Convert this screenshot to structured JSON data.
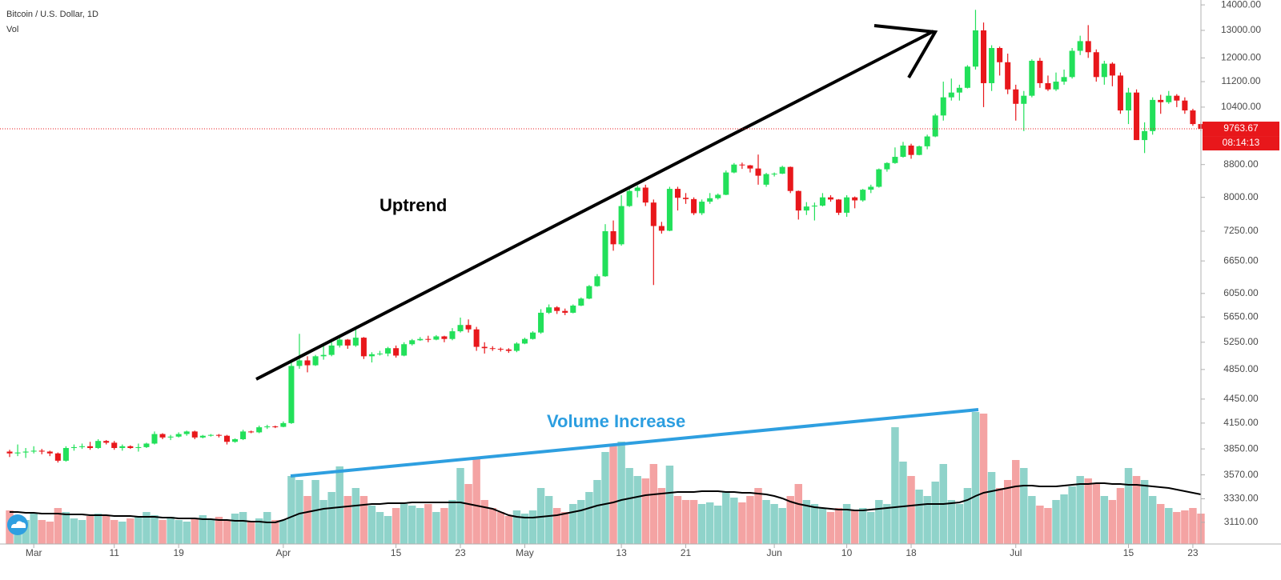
{
  "chart_data": {
    "type": "candlestick",
    "title": "Bitcoin / U.S. Dollar, 1D",
    "volume_label": "Vol",
    "annotations": [
      "Uptrend",
      "Volume Increase"
    ],
    "last_price": {
      "value": 9763.67,
      "label": "9763.67"
    },
    "countdown": "08:14:13",
    "log_scale": true,
    "grid": false,
    "up_color": "#22e05a",
    "down_color": "#e8171b",
    "volume_up_color": "#8fd3ca",
    "volume_down_color": "#f4a3a3",
    "ma_color": "#000000",
    "ylim": [
      2920,
      14200
    ],
    "yticks": [
      {
        "value": 3110,
        "label": "3110.00"
      },
      {
        "value": 3330,
        "label": "3330.00"
      },
      {
        "value": 3570,
        "label": "3570.00"
      },
      {
        "value": 3850,
        "label": "3850.00"
      },
      {
        "value": 4150,
        "label": "4150.00"
      },
      {
        "value": 4450,
        "label": "4450.00"
      },
      {
        "value": 4850,
        "label": "4850.00"
      },
      {
        "value": 5250,
        "label": "5250.00"
      },
      {
        "value": 5650,
        "label": "5650.00"
      },
      {
        "value": 6050,
        "label": "6050.00"
      },
      {
        "value": 6650,
        "label": "6650.00"
      },
      {
        "value": 7250,
        "label": "7250.00"
      },
      {
        "value": 8000,
        "label": "8000.00"
      },
      {
        "value": 8800,
        "label": "8800.00"
      },
      {
        "value": 10400,
        "label": "10400.00"
      },
      {
        "value": 11200,
        "label": "11200.00"
      },
      {
        "value": 12000,
        "label": "12000.00"
      },
      {
        "value": 13000,
        "label": "13000.00"
      },
      {
        "value": 14000,
        "label": "14000.00"
      }
    ],
    "y2lim": [
      0,
      680
    ],
    "categories": [
      null,
      null,
      null,
      "Mar",
      null,
      null,
      null,
      null,
      null,
      null,
      null,
      null,
      null,
      "11",
      null,
      null,
      null,
      null,
      null,
      null,
      null,
      "19",
      null,
      null,
      null,
      null,
      null,
      null,
      null,
      null,
      null,
      null,
      null,
      null,
      "Apr",
      null,
      null,
      null,
      null,
      null,
      null,
      null,
      null,
      null,
      null,
      null,
      null,
      null,
      "15",
      null,
      null,
      null,
      null,
      null,
      null,
      null,
      "23",
      null,
      null,
      null,
      null,
      null,
      null,
      null,
      "May",
      null,
      null,
      null,
      null,
      null,
      null,
      null,
      null,
      null,
      null,
      null,
      "13",
      null,
      null,
      null,
      null,
      null,
      null,
      null,
      "21",
      null,
      null,
      null,
      null,
      null,
      null,
      null,
      null,
      null,
      null,
      "Jun",
      null,
      null,
      null,
      null,
      null,
      null,
      null,
      null,
      "10",
      null,
      null,
      null,
      null,
      null,
      null,
      null,
      "18",
      null,
      null,
      null,
      null,
      null,
      null,
      null,
      null,
      null,
      null,
      null,
      null,
      "Jul",
      null,
      null,
      null,
      null,
      null,
      null,
      null,
      null,
      null,
      null,
      null,
      null,
      null,
      "15",
      null,
      null,
      null,
      null,
      null,
      null,
      null,
      "23",
      null
    ],
    "candles": [
      [
        3820,
        3840,
        3760,
        3800
      ],
      [
        3800,
        3900,
        3770,
        3810
      ],
      [
        3810,
        3860,
        3750,
        3820
      ],
      [
        3820,
        3880,
        3800,
        3830
      ],
      [
        3830,
        3850,
        3790,
        3820
      ],
      [
        3820,
        3830,
        3770,
        3800
      ],
      [
        3800,
        3810,
        3700,
        3720
      ],
      [
        3720,
        3880,
        3710,
        3860
      ],
      [
        3860,
        3900,
        3830,
        3870
      ],
      [
        3870,
        3910,
        3850,
        3880
      ],
      [
        3880,
        3930,
        3840,
        3860
      ],
      [
        3860,
        3960,
        3850,
        3940
      ],
      [
        3940,
        3950,
        3900,
        3920
      ],
      [
        3920,
        3940,
        3840,
        3860
      ],
      [
        3860,
        3900,
        3830,
        3880
      ],
      [
        3880,
        3890,
        3850,
        3860
      ],
      [
        3860,
        3910,
        3820,
        3870
      ],
      [
        3870,
        3920,
        3860,
        3910
      ],
      [
        3910,
        4050,
        3900,
        4020
      ],
      [
        4020,
        4030,
        3960,
        3980
      ],
      [
        3980,
        4010,
        3950,
        3990
      ],
      [
        3990,
        4040,
        3980,
        4020
      ],
      [
        4020,
        4060,
        4000,
        4050
      ],
      [
        4050,
        4060,
        3960,
        3980
      ],
      [
        3980,
        4010,
        3970,
        4000
      ],
      [
        4000,
        4020,
        3990,
        4010
      ],
      [
        4010,
        4020,
        3980,
        4000
      ],
      [
        4000,
        4010,
        3900,
        3930
      ],
      [
        3930,
        3970,
        3920,
        3960
      ],
      [
        3960,
        4070,
        3950,
        4050
      ],
      [
        4050,
        4060,
        4030,
        4040
      ],
      [
        4040,
        4120,
        4030,
        4100
      ],
      [
        4100,
        4130,
        4080,
        4110
      ],
      [
        4110,
        4120,
        4090,
        4105
      ],
      [
        4105,
        4170,
        4100,
        4150
      ],
      [
        4150,
        4950,
        4140,
        4900
      ],
      [
        4900,
        5380,
        4860,
        4980
      ],
      [
        4980,
        5040,
        4810,
        4910
      ],
      [
        4910,
        5060,
        4900,
        5040
      ],
      [
        5040,
        5200,
        4990,
        5060
      ],
      [
        5060,
        5250,
        5040,
        5200
      ],
      [
        5200,
        5340,
        5170,
        5290
      ],
      [
        5290,
        5300,
        5150,
        5200
      ],
      [
        5200,
        5450,
        5180,
        5320
      ],
      [
        5320,
        5330,
        5000,
        5040
      ],
      [
        5040,
        5100,
        4950,
        5070
      ],
      [
        5070,
        5120,
        5050,
        5080
      ],
      [
        5080,
        5180,
        5040,
        5160
      ],
      [
        5160,
        5200,
        5020,
        5050
      ],
      [
        5050,
        5250,
        5040,
        5220
      ],
      [
        5220,
        5300,
        5200,
        5280
      ],
      [
        5280,
        5330,
        5270,
        5300
      ],
      [
        5300,
        5350,
        5250,
        5290
      ],
      [
        5290,
        5360,
        5280,
        5340
      ],
      [
        5340,
        5350,
        5250,
        5300
      ],
      [
        5300,
        5470,
        5280,
        5420
      ],
      [
        5420,
        5640,
        5400,
        5520
      ],
      [
        5520,
        5610,
        5400,
        5450
      ],
      [
        5450,
        5490,
        5120,
        5180
      ],
      [
        5180,
        5250,
        5080,
        5160
      ],
      [
        5160,
        5190,
        5120,
        5150
      ],
      [
        5150,
        5170,
        5110,
        5140
      ],
      [
        5140,
        5160,
        5090,
        5120
      ],
      [
        5120,
        5250,
        5100,
        5230
      ],
      [
        5230,
        5320,
        5220,
        5300
      ],
      [
        5300,
        5420,
        5290,
        5400
      ],
      [
        5400,
        5780,
        5380,
        5720
      ],
      [
        5720,
        5860,
        5700,
        5810
      ],
      [
        5810,
        5830,
        5700,
        5750
      ],
      [
        5750,
        5790,
        5680,
        5720
      ],
      [
        5720,
        5860,
        5710,
        5840
      ],
      [
        5840,
        5980,
        5830,
        5960
      ],
      [
        5960,
        6200,
        5950,
        6180
      ],
      [
        6180,
        6400,
        6170,
        6360
      ],
      [
        6360,
        7400,
        6350,
        7250
      ],
      [
        7250,
        7480,
        6850,
        6980
      ],
      [
        6980,
        8050,
        6950,
        7800
      ],
      [
        7800,
        8250,
        7780,
        8150
      ],
      [
        8150,
        8280,
        8000,
        8230
      ],
      [
        8230,
        8300,
        7800,
        7880
      ],
      [
        7880,
        7950,
        6200,
        7360
      ],
      [
        7360,
        7450,
        7200,
        7260
      ],
      [
        7260,
        8250,
        7250,
        8200
      ],
      [
        8200,
        8250,
        7700,
        7990
      ],
      [
        7990,
        8100,
        7850,
        7960
      ],
      [
        7960,
        8000,
        7600,
        7640
      ],
      [
        7640,
        7950,
        7600,
        7900
      ],
      [
        7900,
        8100,
        7850,
        7980
      ],
      [
        7980,
        8090,
        7950,
        8060
      ],
      [
        8060,
        8650,
        8050,
        8600
      ],
      [
        8600,
        8840,
        8580,
        8800
      ],
      [
        8800,
        8850,
        8690,
        8780
      ],
      [
        8780,
        8790,
        8600,
        8700
      ],
      [
        8700,
        9060,
        8300,
        8520
      ],
      [
        8300,
        8590,
        8250,
        8560
      ],
      [
        8560,
        8600,
        8500,
        8570
      ],
      [
        8570,
        8770,
        8560,
        8740
      ],
      [
        8740,
        8750,
        8100,
        8150
      ],
      [
        8150,
        8160,
        7500,
        7700
      ],
      [
        7700,
        7890,
        7600,
        7790
      ],
      [
        7790,
        7880,
        7480,
        7810
      ],
      [
        7810,
        8100,
        7790,
        8000
      ],
      [
        8000,
        8050,
        7900,
        7950
      ],
      [
        7950,
        7960,
        7600,
        7650
      ],
      [
        7650,
        8050,
        7560,
        8000
      ],
      [
        8000,
        8020,
        7750,
        7930
      ],
      [
        7930,
        8200,
        7900,
        8180
      ],
      [
        8180,
        8300,
        8100,
        8250
      ],
      [
        8250,
        8700,
        8230,
        8680
      ],
      [
        8680,
        8860,
        8620,
        8840
      ],
      [
        8840,
        9250,
        8820,
        9000
      ],
      [
        9000,
        9400,
        8980,
        9300
      ],
      [
        9300,
        9350,
        8950,
        9050
      ],
      [
        9050,
        9300,
        9040,
        9280
      ],
      [
        9280,
        9600,
        9200,
        9550
      ],
      [
        9550,
        10200,
        9530,
        10150
      ],
      [
        10150,
        11200,
        10000,
        10700
      ],
      [
        10700,
        11300,
        10600,
        10850
      ],
      [
        10850,
        11100,
        10600,
        11000
      ],
      [
        11000,
        11750,
        10980,
        11700
      ],
      [
        11700,
        13800,
        11600,
        13000
      ],
      [
        13000,
        13300,
        10400,
        11150
      ],
      [
        11150,
        12450,
        10900,
        12350
      ],
      [
        12350,
        12400,
        11400,
        11850
      ],
      [
        11850,
        12150,
        10800,
        10950
      ],
      [
        10950,
        11100,
        10000,
        10500
      ],
      [
        10500,
        10900,
        9700,
        10750
      ],
      [
        10750,
        11950,
        10700,
        11900
      ],
      [
        11900,
        12000,
        11000,
        11150
      ],
      [
        11150,
        11400,
        10900,
        10950
      ],
      [
        10950,
        11500,
        10900,
        11200
      ],
      [
        11200,
        11600,
        11100,
        11350
      ],
      [
        11350,
        12350,
        11300,
        12250
      ],
      [
        12250,
        12800,
        12100,
        12600
      ],
      [
        12600,
        13200,
        12000,
        12200
      ],
      [
        12200,
        12300,
        11200,
        11350
      ],
      [
        11350,
        11900,
        11100,
        11800
      ],
      [
        11800,
        11850,
        11050,
        11400
      ],
      [
        11400,
        11500,
        10200,
        10300
      ],
      [
        10300,
        11000,
        9900,
        10850
      ],
      [
        10850,
        10950,
        9450,
        9450
      ],
      [
        9450,
        9950,
        9100,
        9700
      ],
      [
        9700,
        10700,
        9600,
        10620
      ],
      [
        10620,
        10780,
        10200,
        10550
      ],
      [
        10550,
        10900,
        10500,
        10750
      ],
      [
        10750,
        10800,
        10400,
        10600
      ],
      [
        10600,
        10700,
        10200,
        10300
      ],
      [
        10300,
        10350,
        9850,
        9900
      ],
      [
        9900,
        9950,
        9700,
        9764
      ]
    ],
    "volume": [
      42,
      35,
      30,
      38,
      30,
      28,
      45,
      40,
      32,
      30,
      35,
      38,
      36,
      30,
      28,
      32,
      34,
      40,
      36,
      30,
      34,
      30,
      28,
      32,
      36,
      30,
      34,
      30,
      38,
      40,
      28,
      32,
      40,
      30,
      30,
      85,
      80,
      60,
      80,
      55,
      65,
      97,
      60,
      70,
      60,
      48,
      40,
      35,
      45,
      50,
      48,
      45,
      50,
      40,
      45,
      55,
      95,
      75,
      108,
      55,
      45,
      40,
      35,
      42,
      38,
      42,
      70,
      60,
      45,
      40,
      50,
      55,
      65,
      80,
      115,
      125,
      128,
      95,
      85,
      82,
      100,
      70,
      98,
      60,
      55,
      55,
      50,
      52,
      48,
      65,
      58,
      52,
      60,
      70,
      55,
      50,
      45,
      60,
      75,
      55,
      50,
      45,
      40,
      45,
      50,
      42,
      45,
      40,
      55,
      50,
      146,
      103,
      85,
      68,
      60,
      78,
      100,
      55,
      50,
      70,
      165,
      163,
      90,
      70,
      80,
      105,
      95,
      60,
      48,
      45,
      55,
      62,
      72,
      85,
      82,
      75,
      60,
      55,
      70,
      95,
      85,
      80,
      60,
      50,
      45,
      40,
      42,
      45,
      38
    ],
    "volume_ma": [
      40,
      40,
      39,
      39,
      38,
      38,
      38,
      37,
      37,
      37,
      36,
      36,
      36,
      35,
      35,
      35,
      34,
      34,
      34,
      33,
      33,
      32,
      32,
      32,
      31,
      31,
      30,
      30,
      29,
      29,
      28,
      28,
      27,
      27,
      30,
      34,
      38,
      40,
      42,
      44,
      45,
      46,
      47,
      48,
      49,
      50,
      50,
      51,
      51,
      51,
      52,
      52,
      52,
      52,
      52,
      52,
      52,
      50,
      48,
      46,
      44,
      40,
      36,
      34,
      33,
      33,
      34,
      35,
      36,
      38,
      40,
      42,
      45,
      48,
      50,
      52,
      55,
      57,
      59,
      61,
      62,
      63,
      64,
      65,
      65,
      65,
      66,
      66,
      66,
      65,
      65,
      64,
      64,
      63,
      62,
      60,
      57,
      53,
      50,
      48,
      46,
      45,
      44,
      43,
      43,
      42,
      42,
      43,
      44,
      45,
      46,
      47,
      48,
      49,
      50,
      50,
      50,
      51,
      52,
      55,
      60,
      64,
      66,
      68,
      70,
      72,
      73,
      73,
      72,
      72,
      72,
      73,
      74,
      75,
      75,
      76,
      76,
      75,
      75,
      74,
      74,
      73,
      72,
      71,
      70,
      68,
      66,
      64,
      62
    ]
  }
}
